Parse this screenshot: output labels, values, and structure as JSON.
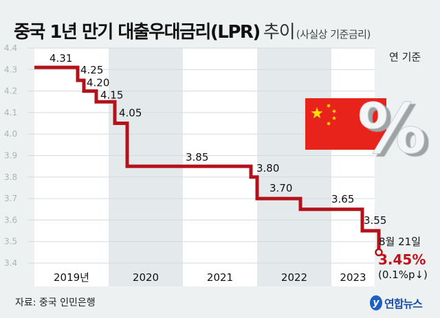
{
  "title": {
    "main": "중국 1년 만기 대출우대금리(LPR)",
    "light": "추이",
    "sub": "(사실상 기준금리)"
  },
  "unit": "연 기준",
  "source": "자료: 중국 인민은행",
  "logo": "연합뉴스",
  "colors": {
    "line": "#b3121a",
    "shade": "#e4e9eb",
    "plot": "#ffffff",
    "highlight": "#c0121c"
  },
  "illustration": {
    "flag": "china-flag",
    "symbol": "percent-3d"
  },
  "chart_data": {
    "type": "line",
    "step": true,
    "ylim": [
      3.4,
      4.4
    ],
    "yticks": [
      "4.4",
      "4.3",
      "4.2",
      "4.1",
      "4.0",
      "3.9",
      "3.8",
      "3.7",
      "3.6",
      "3.5",
      "3.4"
    ],
    "categories": [
      "2019년",
      "2020",
      "2021",
      "2022",
      "2023"
    ],
    "grid": true,
    "points": [
      {
        "x": "2019-01",
        "y": 4.31,
        "label": "4.31"
      },
      {
        "x": "2019-08",
        "y": 4.25,
        "label": "4.25"
      },
      {
        "x": "2019-09",
        "y": 4.2,
        "label": "4.20"
      },
      {
        "x": "2019-11",
        "y": 4.15,
        "label": "4.15"
      },
      {
        "x": "2020-02",
        "y": 4.05,
        "label": "4.05"
      },
      {
        "x": "2020-04",
        "y": 3.85,
        "label": "3.85"
      },
      {
        "x": "2021-12",
        "y": 3.8,
        "label": "3.80"
      },
      {
        "x": "2022-01",
        "y": 3.7,
        "label": "3.70"
      },
      {
        "x": "2022-08",
        "y": 3.65,
        "label": "3.65"
      },
      {
        "x": "2023-06",
        "y": 3.55,
        "label": "3.55"
      },
      {
        "x": "2023-08-21",
        "y": 3.45,
        "label": "3.45%"
      }
    ],
    "annotation": {
      "date": "8월 21일",
      "value": "3.45%",
      "change": "(0.1%p↓)"
    }
  }
}
